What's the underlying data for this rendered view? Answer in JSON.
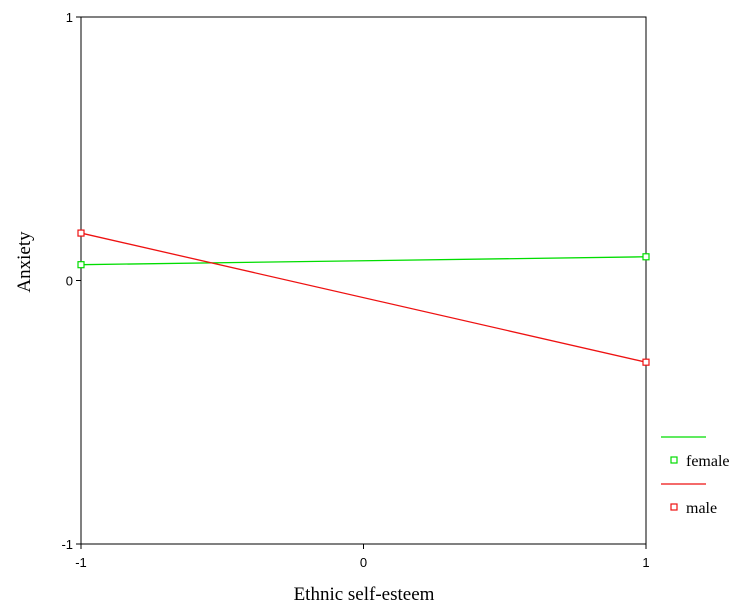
{
  "chart_data": {
    "type": "line",
    "title": "",
    "xlabel": "Ethnic self-esteem",
    "ylabel": "Anxiety",
    "xlim": [
      -1,
      1
    ],
    "ylim": [
      -1,
      1
    ],
    "x_ticks": [
      -1,
      0,
      1
    ],
    "y_ticks": [
      -1,
      0,
      1
    ],
    "x_tick_labels": [
      "-1",
      "0",
      "1"
    ],
    "y_tick_labels": [
      "-1",
      "0",
      "1"
    ],
    "grid": false,
    "legend_position": "bottom-right, outside plot",
    "series": [
      {
        "name": "female",
        "color": "#00dd00",
        "marker": "square",
        "x": [
          -1,
          1
        ],
        "y": [
          0.06,
          0.09
        ]
      },
      {
        "name": "male",
        "color": "#ee1111",
        "marker": "square",
        "x": [
          -1,
          1
        ],
        "y": [
          0.18,
          -0.31
        ]
      }
    ]
  }
}
